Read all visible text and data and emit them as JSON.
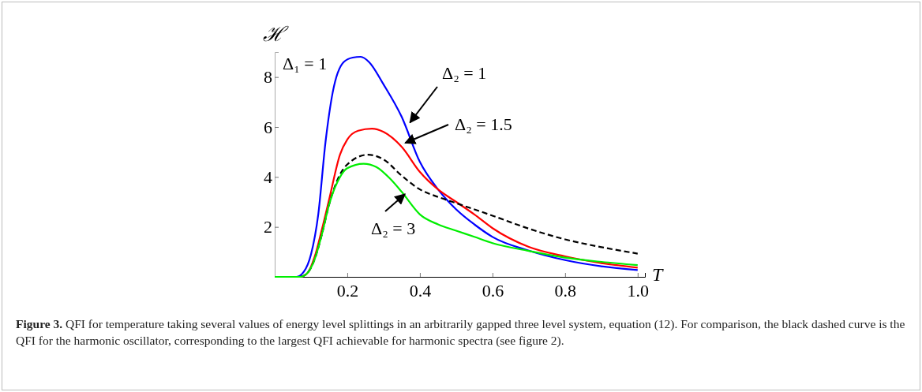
{
  "chart_data": {
    "type": "line",
    "xlabel": "T",
    "ylabel": "ℋ",
    "xlim": [
      0,
      1.02
    ],
    "ylim": [
      0,
      9
    ],
    "xticks": [
      0.2,
      0.4,
      0.6,
      0.8,
      {
        "value": 1,
        "label": "1.0"
      }
    ],
    "yticks": [
      2,
      4,
      6,
      8
    ],
    "grid": false,
    "marker": "none",
    "series": [
      {
        "name": "Δ₂ = 1",
        "color": "#0000ff",
        "line_style": "solid",
        "x": [
          0,
          0.06,
          0.08,
          0.1,
          0.12,
          0.14,
          0.16,
          0.19,
          0.215,
          0.237,
          0.26,
          0.3,
          0.35,
          0.4,
          0.45,
          0.5,
          0.55,
          0.6,
          0.7,
          0.8,
          0.9,
          1.0
        ],
        "values": [
          0,
          0,
          0.2,
          0.9,
          2.5,
          5.4,
          7.4,
          8.6,
          8.78,
          8.81,
          8.6,
          7.7,
          6.4,
          4.6,
          3.5,
          2.7,
          2.1,
          1.6,
          1.05,
          0.67,
          0.42,
          0.27
        ]
      },
      {
        "name": "Δ₂ = 1.5",
        "color": "#ff0000",
        "line_style": "solid",
        "x": [
          0,
          0.07,
          0.09,
          0.11,
          0.13,
          0.15,
          0.18,
          0.2,
          0.23,
          0.268,
          0.3,
          0.35,
          0.4,
          0.45,
          0.5,
          0.55,
          0.6,
          0.7,
          0.8,
          0.9,
          1.0
        ],
        "values": [
          0,
          0,
          0.15,
          0.8,
          1.9,
          3.1,
          4.9,
          5.5,
          5.85,
          5.93,
          5.8,
          5.2,
          4.2,
          3.5,
          3.0,
          2.5,
          1.95,
          1.2,
          0.82,
          0.55,
          0.37
        ]
      },
      {
        "color": "#000000",
        "line_style": "dashed",
        "x": [
          0,
          0.07,
          0.09,
          0.11,
          0.13,
          0.15,
          0.18,
          0.2,
          0.257,
          0.3,
          0.35,
          0.4,
          0.45,
          0.5,
          0.6,
          0.7,
          0.8,
          0.9,
          1.0
        ],
        "values": [
          0,
          0,
          0.15,
          0.7,
          1.7,
          2.9,
          4.1,
          4.5,
          4.89,
          4.7,
          4.05,
          3.5,
          3.2,
          2.95,
          2.45,
          1.93,
          1.5,
          1.19,
          0.93
        ]
      },
      {
        "name": "Δ₂ = 3",
        "color": "#00ee00",
        "line_style": "solid",
        "x": [
          0,
          0.07,
          0.09,
          0.11,
          0.13,
          0.15,
          0.18,
          0.2,
          0.245,
          0.28,
          0.32,
          0.35,
          0.4,
          0.45,
          0.5,
          0.55,
          0.6,
          0.7,
          0.8,
          0.9,
          1.0
        ],
        "values": [
          0,
          0,
          0.15,
          0.7,
          1.7,
          2.9,
          4.0,
          4.35,
          4.53,
          4.4,
          3.9,
          3.4,
          2.5,
          2.1,
          1.85,
          1.6,
          1.35,
          1.04,
          0.77,
          0.6,
          0.47
        ]
      }
    ],
    "annotations": [
      "Δ₁ = 1",
      "Figure 3.",
      "QFI for temperature taking several values of energy level splittings in an arbitrarily gapped three level system, equation (12). For comparison, the black dashed curve is the QFI for the harmonic oscillator, corresponding to the largest QFI achievable for harmonic spectra (see figure 2)."
    ]
  }
}
